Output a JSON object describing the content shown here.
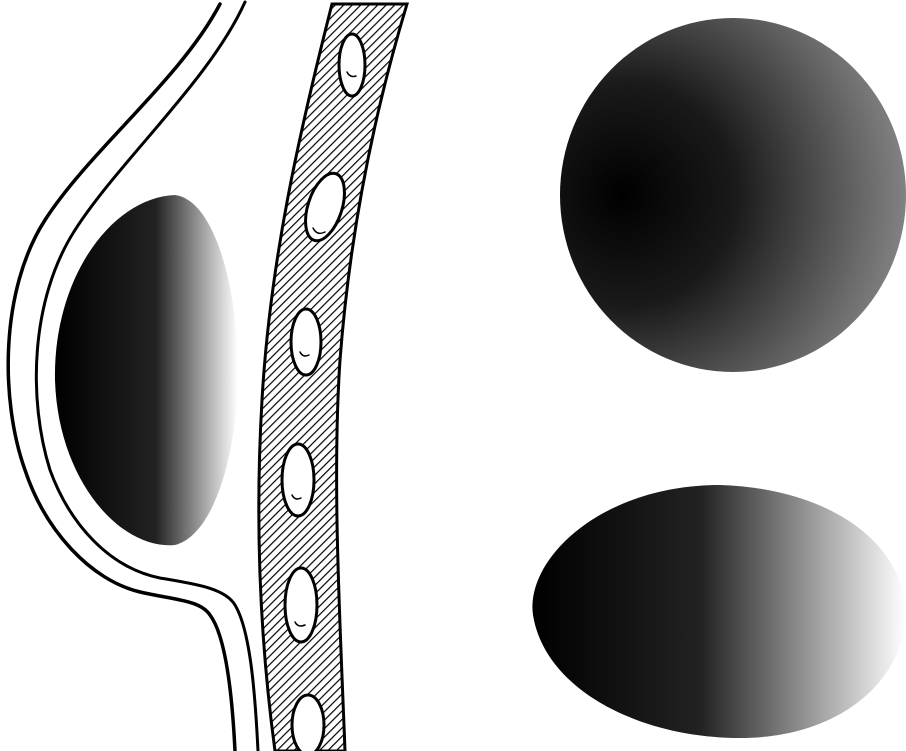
{
  "diagram": {
    "colors": {
      "background": "#ffffff",
      "line": "#000000",
      "hatch_band_fill": "#ffffff",
      "gradient_dark": "#000000",
      "gradient_light": "#ffffff",
      "sphere_mid": "#2a2a2a",
      "sphere_light": "#8c8c8c"
    },
    "hatched_band": {
      "pattern": "diagonal-hatch",
      "void_count": 6
    },
    "shapes": [
      {
        "name": "implant-in-profile",
        "shading": "linear-dark-to-light"
      },
      {
        "name": "round-sphere",
        "shading": "radial-highlight-right"
      },
      {
        "name": "oval-teardrop",
        "shading": "linear-dark-to-light"
      }
    ]
  }
}
